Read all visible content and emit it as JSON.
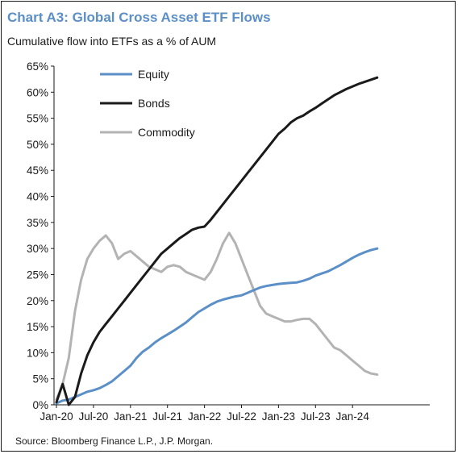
{
  "title": "Chart A3: Global Cross Asset ETF Flows",
  "subtitle": "Cumulative flow into ETFs as a % of AUM",
  "source": "Source: Bloomberg Finance L.P., J.P. Morgan.",
  "chart_data": {
    "type": "line",
    "title": "Chart A3: Global Cross Asset ETF Flows",
    "subtitle": "Cumulative flow into ETFs as a % of AUM",
    "xlabel": "",
    "ylabel": "",
    "ylim": [
      0,
      65
    ],
    "yticks": [
      "0%",
      "5%",
      "10%",
      "15%",
      "20%",
      "25%",
      "30%",
      "35%",
      "40%",
      "45%",
      "50%",
      "55%",
      "60%",
      "65%"
    ],
    "xticks": [
      "Jan-20",
      "Jul-20",
      "Jan-21",
      "Jul-21",
      "Jan-22",
      "Jul-22",
      "Jan-23",
      "Jul-23",
      "Jan-24"
    ],
    "grid": false,
    "legend": "top-left",
    "x": [
      "2020-01",
      "2020-02",
      "2020-03",
      "2020-04",
      "2020-05",
      "2020-06",
      "2020-07",
      "2020-08",
      "2020-09",
      "2020-10",
      "2020-11",
      "2020-12",
      "2021-01",
      "2021-02",
      "2021-03",
      "2021-04",
      "2021-05",
      "2021-06",
      "2021-07",
      "2021-08",
      "2021-09",
      "2021-10",
      "2021-11",
      "2021-12",
      "2022-01",
      "2022-02",
      "2022-03",
      "2022-04",
      "2022-05",
      "2022-06",
      "2022-07",
      "2022-08",
      "2022-09",
      "2022-10",
      "2022-11",
      "2022-12",
      "2023-01",
      "2023-02",
      "2023-03",
      "2023-04",
      "2023-05",
      "2023-06",
      "2023-07",
      "2023-08",
      "2023-09",
      "2023-10",
      "2023-11",
      "2023-12",
      "2024-01",
      "2024-02",
      "2024-03",
      "2024-04",
      "2024-05"
    ],
    "series": [
      {
        "name": "Equity",
        "color": "#5b8fc7",
        "values": [
          0.3,
          0.8,
          1.0,
          1.5,
          2.0,
          2.5,
          2.8,
          3.2,
          3.8,
          4.5,
          5.5,
          6.5,
          7.5,
          9.0,
          10.2,
          11.0,
          12.0,
          12.8,
          13.5,
          14.2,
          15.0,
          15.8,
          16.8,
          17.8,
          18.5,
          19.2,
          19.8,
          20.2,
          20.5,
          20.8,
          21.0,
          21.5,
          22.0,
          22.5,
          22.8,
          23.0,
          23.2,
          23.3,
          23.4,
          23.5,
          23.8,
          24.2,
          24.8,
          25.2,
          25.6,
          26.2,
          26.8,
          27.5,
          28.2,
          28.8,
          29.3,
          29.7,
          30.0
        ]
      },
      {
        "name": "Bonds",
        "color": "#1a1a1a",
        "values": [
          0.5,
          4.0,
          0.0,
          1.5,
          6.0,
          9.5,
          12.0,
          14.0,
          15.5,
          17.0,
          18.5,
          20.0,
          21.5,
          23.0,
          24.5,
          26.0,
          27.5,
          29.0,
          30.0,
          31.0,
          32.0,
          32.8,
          33.6,
          34.0,
          34.2,
          35.5,
          37.0,
          38.5,
          40.0,
          41.5,
          43.0,
          44.5,
          46.0,
          47.5,
          49.0,
          50.5,
          52.0,
          53.0,
          54.2,
          55.0,
          55.5,
          56.3,
          57.0,
          57.8,
          58.6,
          59.4,
          60.0,
          60.6,
          61.1,
          61.6,
          62.0,
          62.4,
          62.8
        ]
      },
      {
        "name": "Commodity",
        "color": "#b3b3b3",
        "values": [
          1.0,
          4.0,
          9.0,
          18.0,
          24.0,
          28.0,
          30.0,
          31.5,
          32.5,
          31.0,
          28.0,
          29.0,
          29.5,
          28.5,
          27.5,
          26.5,
          26.0,
          25.5,
          26.5,
          26.8,
          26.5,
          25.5,
          25.0,
          24.5,
          24.0,
          25.5,
          28.0,
          31.0,
          33.0,
          31.0,
          28.0,
          25.0,
          22.0,
          19.0,
          17.5,
          17.0,
          16.5,
          16.0,
          16.0,
          16.3,
          16.5,
          16.5,
          15.5,
          14.0,
          12.5,
          11.0,
          10.5,
          9.5,
          8.5,
          7.5,
          6.5,
          6.0,
          5.8
        ]
      }
    ]
  }
}
